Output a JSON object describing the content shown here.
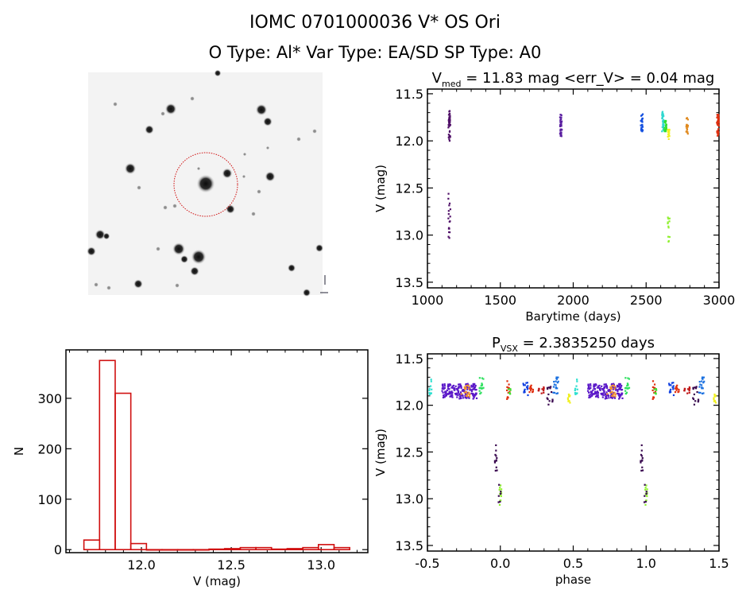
{
  "header": {
    "title": "IOMC 0701000036   V* OS Ori",
    "subtitle": "O Type: Al*  Var Type: EA/SD  SP Type: A0"
  },
  "colors": {
    "axis": "#000000",
    "histogram": "#d01010",
    "circle": "#d01010"
  },
  "chart_data": [
    {
      "id": "lightcurve",
      "type": "scatter",
      "title": "V_med = 11.83 mag <err_V> = 0.04 mag",
      "title_main": "V",
      "title_sub": "med",
      "title_rest": " = 11.83 mag <err_V> = 0.04 mag",
      "xlabel": "Barytime (days)",
      "ylabel": "V (mag)",
      "xlim": [
        1000,
        3000
      ],
      "ylim": [
        11.45,
        13.56
      ],
      "y_inverted": true,
      "xticks": [
        "1000",
        "1500",
        "2000",
        "2500",
        "3000"
      ],
      "yticks": [
        "11.5",
        "12.0",
        "12.5",
        "13.0",
        "13.5"
      ],
      "clusters": [
        {
          "x": 1150,
          "ymin": 11.68,
          "ymax": 12.0,
          "n": 40,
          "color": "#501068"
        },
        {
          "x": 1150,
          "ymin": 12.4,
          "ymax": 13.06,
          "n": 18,
          "color": "#501068"
        },
        {
          "x": 1915,
          "ymin": 11.72,
          "ymax": 11.95,
          "n": 40,
          "color": "#5a1fa0"
        },
        {
          "x": 2470,
          "ymin": 11.71,
          "ymax": 11.9,
          "n": 30,
          "color": "#1450e0"
        },
        {
          "x": 2615,
          "ymin": 11.69,
          "ymax": 11.9,
          "n": 30,
          "color": "#30d8d0"
        },
        {
          "x": 2632,
          "ymin": 11.78,
          "ymax": 11.9,
          "n": 20,
          "color": "#30e030"
        },
        {
          "x": 2655,
          "ymin": 11.87,
          "ymax": 11.99,
          "n": 15,
          "color": "#f0f020"
        },
        {
          "x": 2655,
          "ymin": 12.8,
          "ymax": 13.08,
          "n": 12,
          "color": "#90f030"
        },
        {
          "x": 2780,
          "ymin": 11.75,
          "ymax": 11.93,
          "n": 20,
          "color": "#e08a20"
        },
        {
          "x": 2992,
          "ymin": 11.72,
          "ymax": 11.95,
          "n": 40,
          "color": "#e03010"
        }
      ]
    },
    {
      "id": "histogram",
      "type": "bar",
      "title": "",
      "xlabel": "V (mag)",
      "ylabel": "N",
      "xlim": [
        11.58,
        13.26
      ],
      "ylim": [
        -6,
        396
      ],
      "xticks": [
        "12.0",
        "12.5",
        "13.0"
      ],
      "xtick_values": [
        12.0,
        12.5,
        13.0
      ],
      "yticks": [
        "0",
        "100",
        "200",
        "300"
      ],
      "ytick_values": [
        0,
        100,
        200,
        300
      ],
      "bin_start": 11.68,
      "bin_width": 0.087,
      "counts": [
        19,
        375,
        310,
        12,
        0,
        0,
        0,
        0,
        1,
        2,
        4,
        4,
        1,
        2,
        4,
        10,
        4
      ]
    },
    {
      "id": "phased",
      "type": "scatter",
      "title_main": "P",
      "title_sub": "VSX",
      "title_rest": " = 2.3835250 days",
      "xlabel": "phase",
      "ylabel": "V (mag)",
      "xlim": [
        -0.5,
        1.5
      ],
      "ylim": [
        11.45,
        13.56
      ],
      "y_inverted": true,
      "xticks": [
        "-0.5",
        "0.0",
        "0.5",
        "1.0",
        "1.5"
      ],
      "yticks": [
        "11.5",
        "12.0",
        "12.5",
        "13.0",
        "13.5"
      ],
      "period_days": 2.383525,
      "clusters": [
        {
          "phase": -0.48,
          "spread": 0.01,
          "ymin": 11.72,
          "ymax": 11.9,
          "n": 12,
          "color": "#30e0d0"
        },
        {
          "phase": -0.28,
          "spread": 0.12,
          "ymin": 11.77,
          "ymax": 11.93,
          "n": 170,
          "color": "#5a18c8"
        },
        {
          "phase": -0.24,
          "spread": 0.03,
          "ymin": 11.78,
          "ymax": 11.91,
          "n": 20,
          "color": "#f09030"
        },
        {
          "phase": -0.13,
          "spread": 0.015,
          "ymin": 11.7,
          "ymax": 11.88,
          "n": 18,
          "color": "#30e060"
        },
        {
          "phase": -0.03,
          "spread": 0.008,
          "ymin": 12.4,
          "ymax": 12.75,
          "n": 12,
          "color": "#3a0a50"
        },
        {
          "phase": 0.0,
          "spread": 0.008,
          "ymin": 12.8,
          "ymax": 13.08,
          "n": 12,
          "color": "#90f030"
        },
        {
          "phase": -0.005,
          "spread": 0.008,
          "ymin": 12.85,
          "ymax": 13.07,
          "n": 6,
          "color": "#3a0a50"
        },
        {
          "phase": 0.055,
          "spread": 0.01,
          "ymin": 11.72,
          "ymax": 11.95,
          "n": 12,
          "color": "#e03010"
        },
        {
          "phase": 0.065,
          "spread": 0.01,
          "ymin": 11.82,
          "ymax": 11.88,
          "n": 6,
          "color": "#40e030"
        },
        {
          "phase": 0.17,
          "spread": 0.02,
          "ymin": 11.75,
          "ymax": 11.9,
          "n": 15,
          "color": "#1040e0"
        },
        {
          "phase": 0.21,
          "spread": 0.015,
          "ymin": 11.78,
          "ymax": 11.87,
          "n": 12,
          "color": "#e03010"
        },
        {
          "phase": 0.28,
          "spread": 0.02,
          "ymin": 11.8,
          "ymax": 11.88,
          "n": 12,
          "color": "#c01818"
        },
        {
          "phase": 0.34,
          "spread": 0.02,
          "ymin": 11.8,
          "ymax": 12.0,
          "n": 14,
          "color": "#3a0a50"
        },
        {
          "phase": 0.38,
          "spread": 0.02,
          "ymin": 11.7,
          "ymax": 11.88,
          "n": 18,
          "color": "#1a70e0"
        },
        {
          "phase": 0.47,
          "spread": 0.01,
          "ymin": 11.88,
          "ymax": 11.98,
          "n": 10,
          "color": "#f0f020"
        }
      ]
    }
  ]
}
